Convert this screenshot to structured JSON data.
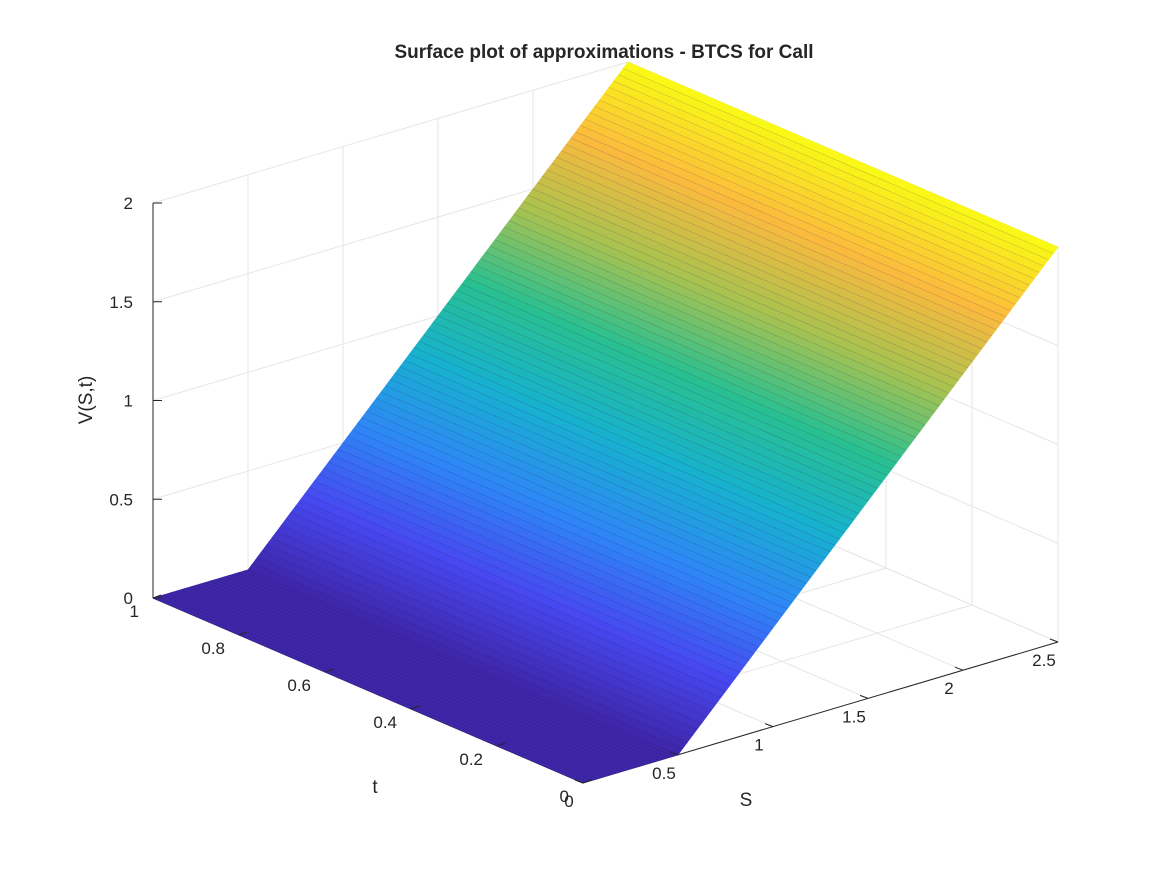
{
  "chart_data": {
    "type": "surface",
    "title": "Surface plot of approximations - BTCS for Call",
    "xlabel": "S",
    "ylabel": "t",
    "zlabel": "V(S,t)",
    "xlim": [
      0,
      2.5
    ],
    "ylim": [
      0,
      1
    ],
    "zlim": [
      0,
      2
    ],
    "xticks": [
      "0",
      "0.5",
      "1",
      "1.5",
      "2",
      "2.5"
    ],
    "yticks": [
      "0",
      "0.2",
      "0.4",
      "0.6",
      "0.8",
      "1"
    ],
    "zticks": [
      "0",
      "0.5",
      "1",
      "1.5",
      "2"
    ],
    "grid": true,
    "colormap": "parula",
    "colormap_stops": [
      "#3e26a8",
      "#4748f0",
      "#2e87f6",
      "#17b1cf",
      "#29c090",
      "#a7c250",
      "#fbba3e",
      "#f9fb15"
    ],
    "strike": 0.5,
    "S_max": 2.5,
    "t_max": 1,
    "surface_rule": "V(S,t) = max(S - 0.5, 0)"
  }
}
